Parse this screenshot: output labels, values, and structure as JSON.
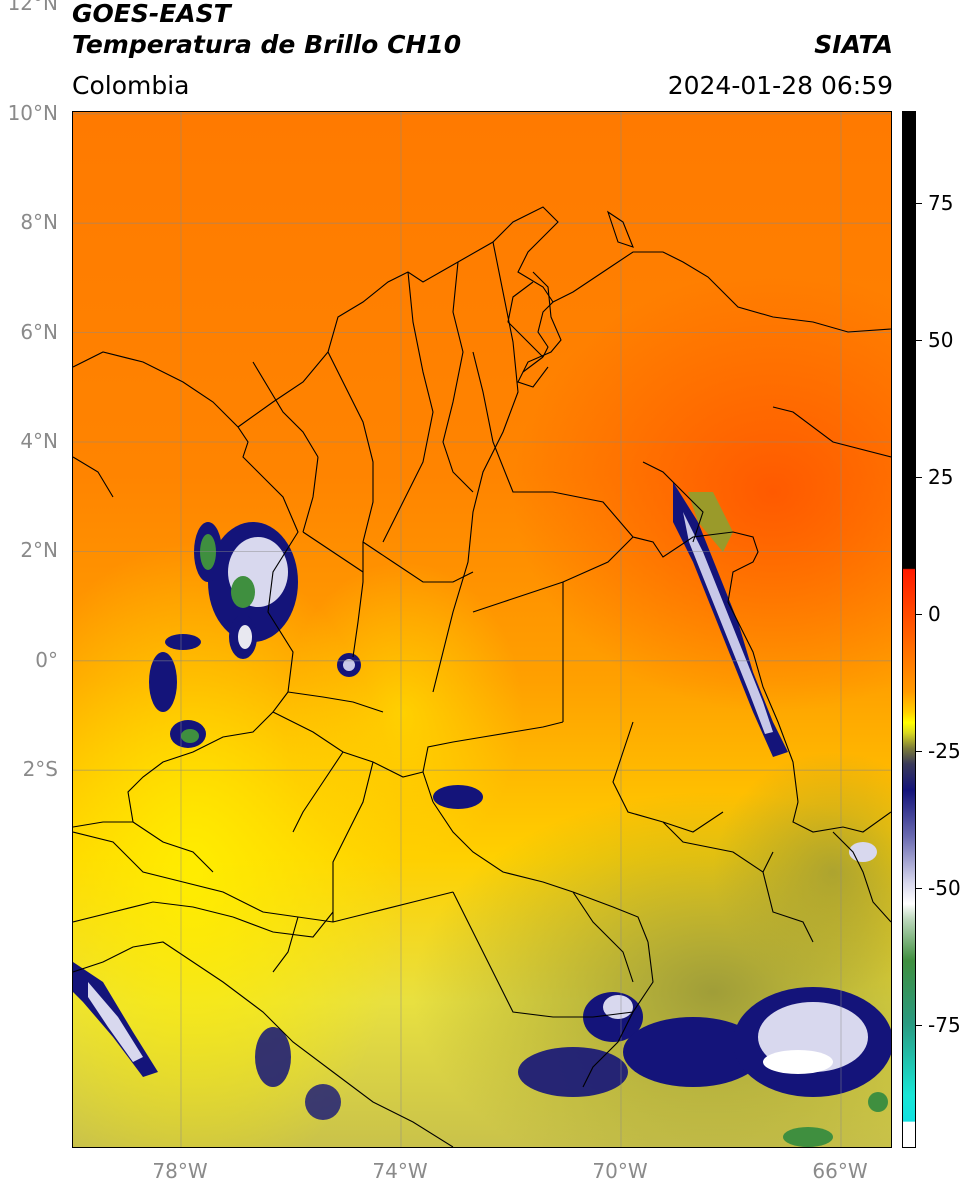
{
  "header": {
    "satellite": "GOES-EAST",
    "product": "Temperatura de Brillo CH10",
    "agency": "SIATA",
    "region": "Colombia",
    "timestamp": "2024-01-28 06:59"
  },
  "axes": {
    "lat_ticks": [
      {
        "label": "12°N",
        "value": 12
      },
      {
        "label": "10°N",
        "value": 10
      },
      {
        "label": "8°N",
        "value": 8
      },
      {
        "label": "6°N",
        "value": 6
      },
      {
        "label": "4°N",
        "value": 4
      },
      {
        "label": "2°N",
        "value": 2
      },
      {
        "label": "0°",
        "value": 0
      },
      {
        "label": "2°S",
        "value": -2
      }
    ],
    "lon_ticks": [
      {
        "label": "78°W",
        "value": -78
      },
      {
        "label": "74°W",
        "value": -74
      },
      {
        "label": "70°W",
        "value": -70
      },
      {
        "label": "66°W",
        "value": -66
      }
    ]
  },
  "colorbar": {
    "ticks": [
      {
        "label": "75",
        "value": 75
      },
      {
        "label": "50",
        "value": 50
      },
      {
        "label": "25",
        "value": 25
      },
      {
        "label": "0",
        "value": 0
      },
      {
        "label": "-25",
        "value": -25
      },
      {
        "label": "-50",
        "value": -50
      },
      {
        "label": "-75",
        "value": -75
      }
    ],
    "colors": {
      "black": "#000000",
      "red": "#ff1a00",
      "orange": "#ff7a00",
      "yellow": "#ffff00",
      "olive": "#9a9a2a",
      "navy": "#14147a",
      "white": "#ffffff",
      "green": "#3f8f3f",
      "cyan": "#19e6d6"
    }
  }
}
